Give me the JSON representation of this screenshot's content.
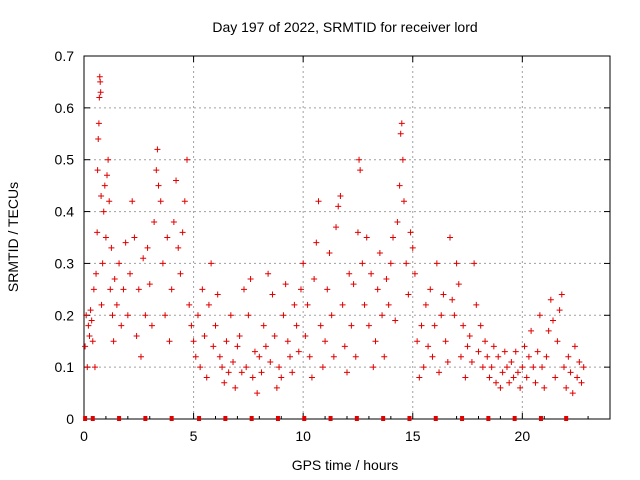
{
  "chart_data": {
    "type": "scatter",
    "title": "Day 197 of 2022, SRMTID for receiver lord",
    "xlabel": "GPS time / hours",
    "ylabel": "SRMTID / TECUs",
    "xlim": [
      0,
      24
    ],
    "ylim": [
      0,
      0.7
    ],
    "grid": true,
    "marker": "+",
    "color": "#e00000",
    "x_ticks": [
      {
        "value": 0,
        "label": "0"
      },
      {
        "value": 5,
        "label": "5"
      },
      {
        "value": 10,
        "label": "10"
      },
      {
        "value": 15,
        "label": "15"
      },
      {
        "value": 20,
        "label": "20"
      }
    ],
    "y_ticks": [
      {
        "value": 0,
        "label": "0"
      },
      {
        "value": 0.1,
        "label": "0.1"
      },
      {
        "value": 0.2,
        "label": "0.2"
      },
      {
        "value": 0.3,
        "label": "0.3"
      },
      {
        "value": 0.4,
        "label": "0.4"
      },
      {
        "value": 0.5,
        "label": "0.5"
      },
      {
        "value": 0.6,
        "label": "0.6"
      },
      {
        "value": 0.7,
        "label": "0.7"
      }
    ],
    "zero_markers_x": [
      0.05,
      0.4,
      1.6,
      2.8,
      4.0,
      5.25,
      6.45,
      7.65,
      8.85,
      10.05,
      11.25,
      12.45,
      13.65,
      14.85,
      16.05,
      17.25,
      18.45,
      19.65,
      20.85,
      22.0
    ],
    "series": [
      {
        "name": "SRMTID",
        "points": [
          [
            0.05,
            0.14
          ],
          [
            0.1,
            0.2
          ],
          [
            0.15,
            0.1
          ],
          [
            0.2,
            0.18
          ],
          [
            0.25,
            0.16
          ],
          [
            0.3,
            0.21
          ],
          [
            0.35,
            0.19
          ],
          [
            0.4,
            0.15
          ],
          [
            0.45,
            0.25
          ],
          [
            0.5,
            0.1
          ],
          [
            0.55,
            0.28
          ],
          [
            0.6,
            0.36
          ],
          [
            0.62,
            0.48
          ],
          [
            0.65,
            0.54
          ],
          [
            0.68,
            0.57
          ],
          [
            0.7,
            0.62
          ],
          [
            0.72,
            0.66
          ],
          [
            0.74,
            0.65
          ],
          [
            0.76,
            0.63
          ],
          [
            0.78,
            0.43
          ],
          [
            0.8,
            0.22
          ],
          [
            0.85,
            0.3
          ],
          [
            0.9,
            0.4
          ],
          [
            0.95,
            0.45
          ],
          [
            1.0,
            0.35
          ],
          [
            1.05,
            0.47
          ],
          [
            1.1,
            0.5
          ],
          [
            1.15,
            0.42
          ],
          [
            1.2,
            0.25
          ],
          [
            1.25,
            0.33
          ],
          [
            1.3,
            0.2
          ],
          [
            1.35,
            0.15
          ],
          [
            1.4,
            0.27
          ],
          [
            1.5,
            0.22
          ],
          [
            1.6,
            0.3
          ],
          [
            1.7,
            0.18
          ],
          [
            1.8,
            0.25
          ],
          [
            1.9,
            0.34
          ],
          [
            2.0,
            0.2
          ],
          [
            2.1,
            0.28
          ],
          [
            2.2,
            0.42
          ],
          [
            2.3,
            0.35
          ],
          [
            2.4,
            0.16
          ],
          [
            2.5,
            0.25
          ],
          [
            2.6,
            0.12
          ],
          [
            2.7,
            0.31
          ],
          [
            2.8,
            0.2
          ],
          [
            2.9,
            0.33
          ],
          [
            3.0,
            0.26
          ],
          [
            3.1,
            0.18
          ],
          [
            3.2,
            0.38
          ],
          [
            3.3,
            0.48
          ],
          [
            3.35,
            0.52
          ],
          [
            3.4,
            0.45
          ],
          [
            3.5,
            0.42
          ],
          [
            3.6,
            0.3
          ],
          [
            3.7,
            0.2
          ],
          [
            3.8,
            0.35
          ],
          [
            3.9,
            0.15
          ],
          [
            4.0,
            0.25
          ],
          [
            4.1,
            0.38
          ],
          [
            4.2,
            0.46
          ],
          [
            4.3,
            0.33
          ],
          [
            4.4,
            0.28
          ],
          [
            4.5,
            0.36
          ],
          [
            4.6,
            0.42
          ],
          [
            4.7,
            0.5
          ],
          [
            4.8,
            0.22
          ],
          [
            4.9,
            0.18
          ],
          [
            5.0,
            0.15
          ],
          [
            5.1,
            0.12
          ],
          [
            5.2,
            0.2
          ],
          [
            5.3,
            0.1
          ],
          [
            5.4,
            0.25
          ],
          [
            5.5,
            0.16
          ],
          [
            5.6,
            0.08
          ],
          [
            5.7,
            0.22
          ],
          [
            5.8,
            0.3
          ],
          [
            5.9,
            0.14
          ],
          [
            6.0,
            0.18
          ],
          [
            6.1,
            0.24
          ],
          [
            6.2,
            0.12
          ],
          [
            6.3,
            0.1
          ],
          [
            6.4,
            0.07
          ],
          [
            6.5,
            0.15
          ],
          [
            6.6,
            0.09
          ],
          [
            6.7,
            0.2
          ],
          [
            6.8,
            0.11
          ],
          [
            6.9,
            0.06
          ],
          [
            7.0,
            0.14
          ],
          [
            7.1,
            0.16
          ],
          [
            7.2,
            0.09
          ],
          [
            7.3,
            0.25
          ],
          [
            7.4,
            0.1
          ],
          [
            7.5,
            0.2
          ],
          [
            7.6,
            0.27
          ],
          [
            7.7,
            0.08
          ],
          [
            7.8,
            0.13
          ],
          [
            7.9,
            0.05
          ],
          [
            8.0,
            0.12
          ],
          [
            8.1,
            0.09
          ],
          [
            8.2,
            0.18
          ],
          [
            8.3,
            0.14
          ],
          [
            8.4,
            0.28
          ],
          [
            8.5,
            0.11
          ],
          [
            8.6,
            0.24
          ],
          [
            8.7,
            0.16
          ],
          [
            8.8,
            0.06
          ],
          [
            8.9,
            0.1
          ],
          [
            9.0,
            0.08
          ],
          [
            9.1,
            0.2
          ],
          [
            9.2,
            0.26
          ],
          [
            9.3,
            0.15
          ],
          [
            9.4,
            0.12
          ],
          [
            9.5,
            0.09
          ],
          [
            9.6,
            0.22
          ],
          [
            9.7,
            0.18
          ],
          [
            9.8,
            0.13
          ],
          [
            9.9,
            0.25
          ],
          [
            10.0,
            0.3
          ],
          [
            10.1,
            0.16
          ],
          [
            10.2,
            0.22
          ],
          [
            10.3,
            0.12
          ],
          [
            10.4,
            0.08
          ],
          [
            10.5,
            0.27
          ],
          [
            10.6,
            0.34
          ],
          [
            10.7,
            0.42
          ],
          [
            10.8,
            0.18
          ],
          [
            10.9,
            0.1
          ],
          [
            11.0,
            0.15
          ],
          [
            11.1,
            0.25
          ],
          [
            11.2,
            0.32
          ],
          [
            11.3,
            0.2
          ],
          [
            11.4,
            0.12
          ],
          [
            11.5,
            0.37
          ],
          [
            11.6,
            0.41
          ],
          [
            11.7,
            0.43
          ],
          [
            11.8,
            0.22
          ],
          [
            11.9,
            0.14
          ],
          [
            12.0,
            0.09
          ],
          [
            12.1,
            0.28
          ],
          [
            12.2,
            0.18
          ],
          [
            12.3,
            0.26
          ],
          [
            12.4,
            0.12
          ],
          [
            12.5,
            0.36
          ],
          [
            12.55,
            0.5
          ],
          [
            12.6,
            0.48
          ],
          [
            12.7,
            0.3
          ],
          [
            12.8,
            0.22
          ],
          [
            12.9,
            0.35
          ],
          [
            13.0,
            0.18
          ],
          [
            13.1,
            0.28
          ],
          [
            13.2,
            0.1
          ],
          [
            13.3,
            0.15
          ],
          [
            13.4,
            0.25
          ],
          [
            13.5,
            0.32
          ],
          [
            13.6,
            0.2
          ],
          [
            13.7,
            0.12
          ],
          [
            13.8,
            0.27
          ],
          [
            13.9,
            0.22
          ],
          [
            14.0,
            0.3
          ],
          [
            14.1,
            0.35
          ],
          [
            14.2,
            0.19
          ],
          [
            14.3,
            0.38
          ],
          [
            14.4,
            0.45
          ],
          [
            14.45,
            0.55
          ],
          [
            14.5,
            0.57
          ],
          [
            14.55,
            0.5
          ],
          [
            14.6,
            0.42
          ],
          [
            14.7,
            0.3
          ],
          [
            14.8,
            0.24
          ],
          [
            14.9,
            0.36
          ],
          [
            15.0,
            0.33
          ],
          [
            15.1,
            0.28
          ],
          [
            15.2,
            0.15
          ],
          [
            15.3,
            0.08
          ],
          [
            15.4,
            0.18
          ],
          [
            15.5,
            0.1
          ],
          [
            15.6,
            0.22
          ],
          [
            15.7,
            0.14
          ],
          [
            15.8,
            0.25
          ],
          [
            15.9,
            0.12
          ],
          [
            16.0,
            0.18
          ],
          [
            16.1,
            0.3
          ],
          [
            16.2,
            0.09
          ],
          [
            16.3,
            0.2
          ],
          [
            16.4,
            0.24
          ],
          [
            16.5,
            0.15
          ],
          [
            16.6,
            0.11
          ],
          [
            16.7,
            0.35
          ],
          [
            16.8,
            0.23
          ],
          [
            16.9,
            0.2
          ],
          [
            17.0,
            0.3
          ],
          [
            17.1,
            0.26
          ],
          [
            17.2,
            0.12
          ],
          [
            17.3,
            0.18
          ],
          [
            17.4,
            0.08
          ],
          [
            17.5,
            0.14
          ],
          [
            17.6,
            0.16
          ],
          [
            17.7,
            0.11
          ],
          [
            17.8,
            0.3
          ],
          [
            17.9,
            0.22
          ],
          [
            18.0,
            0.13
          ],
          [
            18.1,
            0.18
          ],
          [
            18.2,
            0.1
          ],
          [
            18.3,
            0.15
          ],
          [
            18.4,
            0.12
          ],
          [
            18.5,
            0.08
          ],
          [
            18.6,
            0.1
          ],
          [
            18.7,
            0.14
          ],
          [
            18.8,
            0.07
          ],
          [
            18.9,
            0.12
          ],
          [
            19.0,
            0.06
          ],
          [
            19.1,
            0.09
          ],
          [
            19.2,
            0.13
          ],
          [
            19.3,
            0.1
          ],
          [
            19.4,
            0.07
          ],
          [
            19.5,
            0.11
          ],
          [
            19.6,
            0.08
          ],
          [
            19.7,
            0.13
          ],
          [
            19.8,
            0.09
          ],
          [
            19.9,
            0.06
          ],
          [
            20.0,
            0.1
          ],
          [
            20.1,
            0.14
          ],
          [
            20.2,
            0.08
          ],
          [
            20.3,
            0.12
          ],
          [
            20.4,
            0.17
          ],
          [
            20.5,
            0.1
          ],
          [
            20.6,
            0.07
          ],
          [
            20.7,
            0.13
          ],
          [
            20.8,
            0.2
          ],
          [
            20.9,
            0.1
          ],
          [
            21.0,
            0.06
          ],
          [
            21.1,
            0.12
          ],
          [
            21.2,
            0.17
          ],
          [
            21.3,
            0.23
          ],
          [
            21.4,
            0.19
          ],
          [
            21.5,
            0.08
          ],
          [
            21.6,
            0.15
          ],
          [
            21.7,
            0.21
          ],
          [
            21.8,
            0.24
          ],
          [
            21.9,
            0.1
          ],
          [
            22.0,
            0.06
          ],
          [
            22.1,
            0.12
          ],
          [
            22.2,
            0.09
          ],
          [
            22.3,
            0.05
          ],
          [
            22.4,
            0.14
          ],
          [
            22.5,
            0.08
          ],
          [
            22.6,
            0.11
          ],
          [
            22.7,
            0.07
          ],
          [
            22.8,
            0.1
          ]
        ]
      }
    ]
  }
}
